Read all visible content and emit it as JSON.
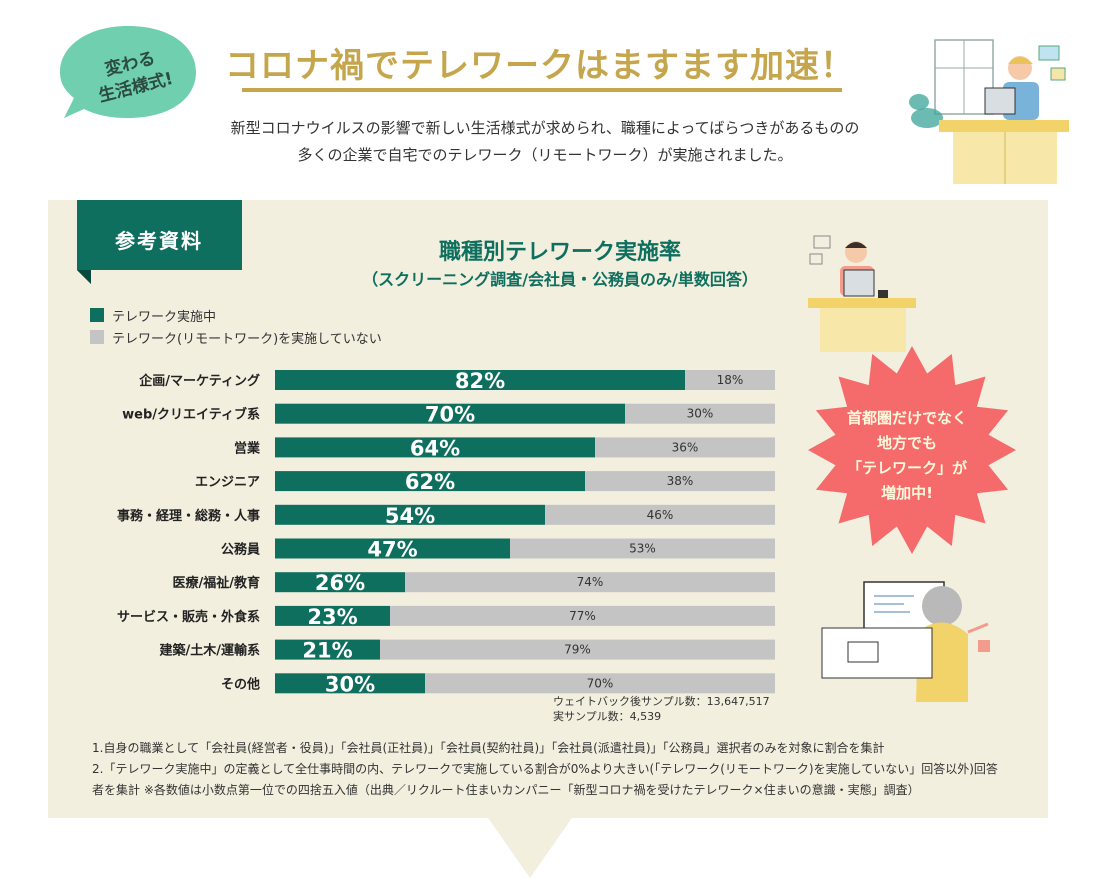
{
  "badge": {
    "line1": "変わる",
    "line2": "生活様式!"
  },
  "headline": "コロナ禍でテレワークはますます加速！",
  "intro": {
    "line1": "新型コロナウイルスの影響で新しい生活様式が求められ、職種によってばらつきがあるものの",
    "line2": "多くの企業で自宅でのテレワーク（リモートワーク）が実施されました。"
  },
  "ribbon": "参考資料",
  "colors": {
    "teal": "#0f6f5f",
    "gray": "#c4c4c4",
    "gold": "#c6a64d",
    "panel": "#f3efdf",
    "star": "#f56b6b",
    "badge": "#6fcfae"
  },
  "chart_data": {
    "type": "bar",
    "orientation": "horizontal-stacked",
    "title": "職種別テレワーク実施率",
    "subtitle": "（スクリーニング調査/会社員・公務員のみ/単数回答）",
    "categories": [
      "企画/マーケティング",
      "web/クリエイティブ系",
      "営業",
      "エンジニア",
      "事務・経理・総務・人事",
      "公務員",
      "医療/福祉/教育",
      "サービス・販売・外食系",
      "建築/土木/運輸系",
      "その他"
    ],
    "series": [
      {
        "name": "テレワーク実施中",
        "values": [
          82,
          70,
          64,
          62,
          54,
          47,
          26,
          23,
          21,
          30
        ]
      },
      {
        "name": "テレワーク(リモートワーク)を実施していない",
        "values": [
          18,
          30,
          36,
          38,
          46,
          53,
          74,
          77,
          79,
          70
        ]
      }
    ],
    "unit": "%",
    "xlim": [
      0,
      100
    ],
    "legend_position": "top-left"
  },
  "sample": {
    "line1": "ウェイトバック後サンプル数：13,647,517",
    "line2": "実サンプル数：4,539"
  },
  "notes": {
    "n1": "1.自身の職業として「会社員(経営者・役員)」「会社員(正社員)」「会社員(契約社員)」「会社員(派遣社員)」「公務員」選択者のみを対象に割合を集計",
    "n2": "2.「テレワーク実施中」の定義として全仕事時間の内、テレワークで実施している割合が0%より大きい(「テレワーク(リモートワーク)を実施していない」回答以外)回答",
    "n3": "者を集計 ※各数値は小数点第一位での四捨五入値（出典／リクルート住まいカンパニー「新型コロナ禍を受けたテレワーク×住まいの意識・実態」調査）"
  },
  "callout": {
    "line1": "首都圏だけでなく",
    "line2": "地方でも",
    "line3": "「テレワーク」が",
    "line4": "増加中!"
  }
}
